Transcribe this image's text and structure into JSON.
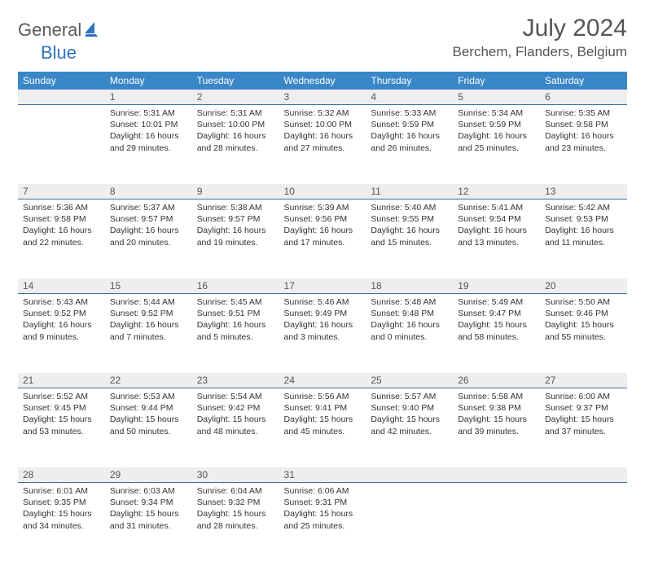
{
  "logo": {
    "text1": "General",
    "text2": "Blue"
  },
  "title": "July 2024",
  "location": "Berchem, Flanders, Belgium",
  "colors": {
    "header_bg": "#3a87c8",
    "header_fg": "#ffffff",
    "daynum_bg": "#eeeeee",
    "daynum_border": "#3a6ea5",
    "text": "#333333",
    "title_color": "#555555",
    "logo_gray": "#5b5b5b",
    "logo_blue": "#2f72c2"
  },
  "day_headers": [
    "Sunday",
    "Monday",
    "Tuesday",
    "Wednesday",
    "Thursday",
    "Friday",
    "Saturday"
  ],
  "weeks": [
    {
      "nums": [
        "",
        "1",
        "2",
        "3",
        "4",
        "5",
        "6"
      ],
      "cells": [
        null,
        {
          "sr": "Sunrise: 5:31 AM",
          "ss": "Sunset: 10:01 PM",
          "dl": "Daylight: 16 hours and 29 minutes."
        },
        {
          "sr": "Sunrise: 5:31 AM",
          "ss": "Sunset: 10:00 PM",
          "dl": "Daylight: 16 hours and 28 minutes."
        },
        {
          "sr": "Sunrise: 5:32 AM",
          "ss": "Sunset: 10:00 PM",
          "dl": "Daylight: 16 hours and 27 minutes."
        },
        {
          "sr": "Sunrise: 5:33 AM",
          "ss": "Sunset: 9:59 PM",
          "dl": "Daylight: 16 hours and 26 minutes."
        },
        {
          "sr": "Sunrise: 5:34 AM",
          "ss": "Sunset: 9:59 PM",
          "dl": "Daylight: 16 hours and 25 minutes."
        },
        {
          "sr": "Sunrise: 5:35 AM",
          "ss": "Sunset: 9:58 PM",
          "dl": "Daylight: 16 hours and 23 minutes."
        }
      ]
    },
    {
      "nums": [
        "7",
        "8",
        "9",
        "10",
        "11",
        "12",
        "13"
      ],
      "cells": [
        {
          "sr": "Sunrise: 5:36 AM",
          "ss": "Sunset: 9:58 PM",
          "dl": "Daylight: 16 hours and 22 minutes."
        },
        {
          "sr": "Sunrise: 5:37 AM",
          "ss": "Sunset: 9:57 PM",
          "dl": "Daylight: 16 hours and 20 minutes."
        },
        {
          "sr": "Sunrise: 5:38 AM",
          "ss": "Sunset: 9:57 PM",
          "dl": "Daylight: 16 hours and 19 minutes."
        },
        {
          "sr": "Sunrise: 5:39 AM",
          "ss": "Sunset: 9:56 PM",
          "dl": "Daylight: 16 hours and 17 minutes."
        },
        {
          "sr": "Sunrise: 5:40 AM",
          "ss": "Sunset: 9:55 PM",
          "dl": "Daylight: 16 hours and 15 minutes."
        },
        {
          "sr": "Sunrise: 5:41 AM",
          "ss": "Sunset: 9:54 PM",
          "dl": "Daylight: 16 hours and 13 minutes."
        },
        {
          "sr": "Sunrise: 5:42 AM",
          "ss": "Sunset: 9:53 PM",
          "dl": "Daylight: 16 hours and 11 minutes."
        }
      ]
    },
    {
      "nums": [
        "14",
        "15",
        "16",
        "17",
        "18",
        "19",
        "20"
      ],
      "cells": [
        {
          "sr": "Sunrise: 5:43 AM",
          "ss": "Sunset: 9:52 PM",
          "dl": "Daylight: 16 hours and 9 minutes."
        },
        {
          "sr": "Sunrise: 5:44 AM",
          "ss": "Sunset: 9:52 PM",
          "dl": "Daylight: 16 hours and 7 minutes."
        },
        {
          "sr": "Sunrise: 5:45 AM",
          "ss": "Sunset: 9:51 PM",
          "dl": "Daylight: 16 hours and 5 minutes."
        },
        {
          "sr": "Sunrise: 5:46 AM",
          "ss": "Sunset: 9:49 PM",
          "dl": "Daylight: 16 hours and 3 minutes."
        },
        {
          "sr": "Sunrise: 5:48 AM",
          "ss": "Sunset: 9:48 PM",
          "dl": "Daylight: 16 hours and 0 minutes."
        },
        {
          "sr": "Sunrise: 5:49 AM",
          "ss": "Sunset: 9:47 PM",
          "dl": "Daylight: 15 hours and 58 minutes."
        },
        {
          "sr": "Sunrise: 5:50 AM",
          "ss": "Sunset: 9:46 PM",
          "dl": "Daylight: 15 hours and 55 minutes."
        }
      ]
    },
    {
      "nums": [
        "21",
        "22",
        "23",
        "24",
        "25",
        "26",
        "27"
      ],
      "cells": [
        {
          "sr": "Sunrise: 5:52 AM",
          "ss": "Sunset: 9:45 PM",
          "dl": "Daylight: 15 hours and 53 minutes."
        },
        {
          "sr": "Sunrise: 5:53 AM",
          "ss": "Sunset: 9:44 PM",
          "dl": "Daylight: 15 hours and 50 minutes."
        },
        {
          "sr": "Sunrise: 5:54 AM",
          "ss": "Sunset: 9:42 PM",
          "dl": "Daylight: 15 hours and 48 minutes."
        },
        {
          "sr": "Sunrise: 5:56 AM",
          "ss": "Sunset: 9:41 PM",
          "dl": "Daylight: 15 hours and 45 minutes."
        },
        {
          "sr": "Sunrise: 5:57 AM",
          "ss": "Sunset: 9:40 PM",
          "dl": "Daylight: 15 hours and 42 minutes."
        },
        {
          "sr": "Sunrise: 5:58 AM",
          "ss": "Sunset: 9:38 PM",
          "dl": "Daylight: 15 hours and 39 minutes."
        },
        {
          "sr": "Sunrise: 6:00 AM",
          "ss": "Sunset: 9:37 PM",
          "dl": "Daylight: 15 hours and 37 minutes."
        }
      ]
    },
    {
      "nums": [
        "28",
        "29",
        "30",
        "31",
        "",
        "",
        ""
      ],
      "cells": [
        {
          "sr": "Sunrise: 6:01 AM",
          "ss": "Sunset: 9:35 PM",
          "dl": "Daylight: 15 hours and 34 minutes."
        },
        {
          "sr": "Sunrise: 6:03 AM",
          "ss": "Sunset: 9:34 PM",
          "dl": "Daylight: 15 hours and 31 minutes."
        },
        {
          "sr": "Sunrise: 6:04 AM",
          "ss": "Sunset: 9:32 PM",
          "dl": "Daylight: 15 hours and 28 minutes."
        },
        {
          "sr": "Sunrise: 6:06 AM",
          "ss": "Sunset: 9:31 PM",
          "dl": "Daylight: 15 hours and 25 minutes."
        },
        null,
        null,
        null
      ]
    }
  ]
}
